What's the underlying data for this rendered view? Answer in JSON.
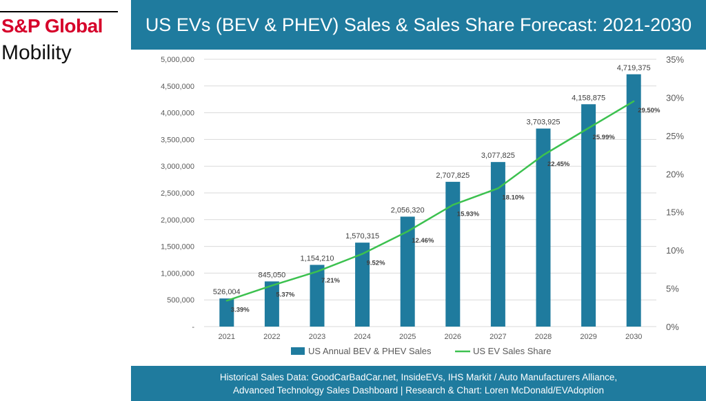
{
  "logo": {
    "line1": "S&P Global",
    "line2": "Mobility"
  },
  "header": {
    "title": "US EVs (BEV & PHEV) Sales & Sales Share Forecast: 2021-2030"
  },
  "footer": {
    "line1": "Historical Sales Data: GoodCarBadCar.net, InsideEVs, IHS Markit / Auto Manufacturers Alliance,",
    "line2": "Advanced Technology Sales Dashboard | Research & Chart: Loren McDonald/EVAdoption"
  },
  "colors": {
    "bar": "#1f7b9e",
    "line": "#3cc14f",
    "banner": "#1f7b9e",
    "logo_red": "#d6002a"
  },
  "chart_data": {
    "type": "bar",
    "categories": [
      "2021",
      "2022",
      "2023",
      "2024",
      "2025",
      "2026",
      "2027",
      "2028",
      "2029",
      "2030"
    ],
    "series": [
      {
        "name": "US Annual BEV & PHEV Sales",
        "type": "bar",
        "axis": "left",
        "values": [
          526004,
          845050,
          1154210,
          1570315,
          2056320,
          2707825,
          3077825,
          3703925,
          4158875,
          4719375
        ],
        "labels": [
          "526,004",
          "845,050",
          "1,154,210",
          "1,570,315",
          "2,056,320",
          "2,707,825",
          "3,077,825",
          "3,703,925",
          "4,158,875",
          "4,719,375"
        ]
      },
      {
        "name": "US EV Sales Share",
        "type": "line",
        "axis": "right",
        "values": [
          3.39,
          5.37,
          7.21,
          9.52,
          12.46,
          15.93,
          18.1,
          22.45,
          25.99,
          29.5
        ],
        "labels": [
          "3.39%",
          "5.37%",
          "7.21%",
          "9.52%",
          "12.46%",
          "15.93%",
          "18.10%",
          "22.45%",
          "25.99%",
          "29.50%"
        ]
      }
    ],
    "y_left": {
      "ylim": [
        0,
        5000000
      ],
      "ticks": [
        0,
        500000,
        1000000,
        1500000,
        2000000,
        2500000,
        3000000,
        3500000,
        4000000,
        4500000,
        5000000
      ],
      "tick_labels": [
        "-",
        "500,000",
        "1,000,000",
        "1,500,000",
        "2,000,000",
        "2,500,000",
        "3,000,000",
        "3,500,000",
        "4,000,000",
        "4,500,000",
        "5,000,000"
      ]
    },
    "y_right": {
      "ylim": [
        0,
        35
      ],
      "ticks": [
        0,
        5,
        10,
        15,
        20,
        25,
        30,
        35
      ],
      "tick_labels": [
        "0%",
        "5%",
        "10%",
        "15%",
        "20%",
        "25%",
        "30%",
        "35%"
      ]
    },
    "grid": true,
    "legend": "bottom"
  }
}
